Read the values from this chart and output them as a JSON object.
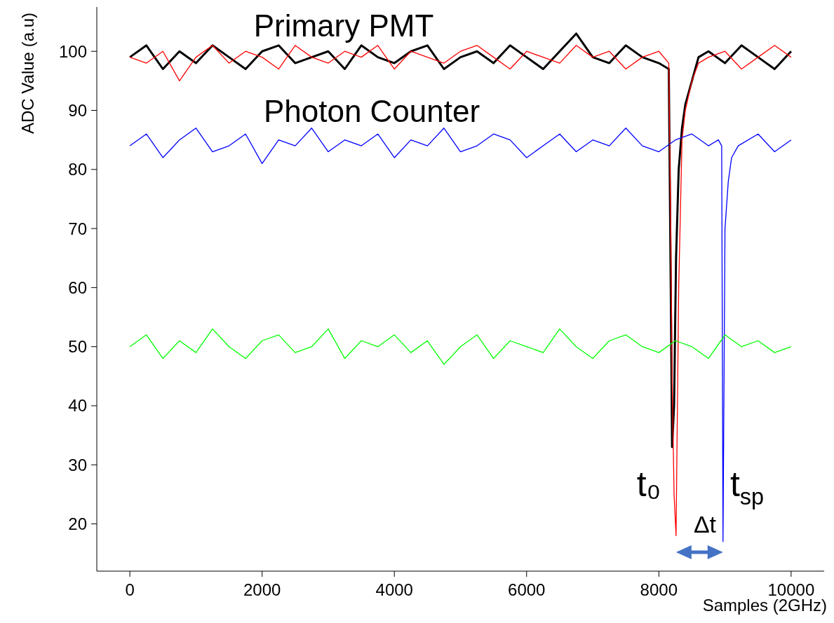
{
  "chart_data": {
    "type": "line",
    "xlabel": "Samples (2GHz)",
    "ylabel": "ADC Value (a.u)",
    "xlim": [
      -500,
      10500
    ],
    "xticks": [
      0,
      2000,
      4000,
      6000,
      8000,
      10000
    ],
    "ylim": [
      12,
      107.5
    ],
    "yticks": [
      20,
      30,
      40,
      50,
      60,
      70,
      80,
      90,
      100
    ],
    "grid": false,
    "marker": "none",
    "line_style": "solid",
    "series": [
      {
        "color": "#000000",
        "x": [
          0,
          250,
          500,
          750,
          1000,
          1250,
          1500,
          1750,
          2000,
          2250,
          2500,
          2750,
          3000,
          3250,
          3500,
          3750,
          4000,
          4250,
          4500,
          4750,
          5000,
          5250,
          5500,
          5750,
          6000,
          6250,
          6500,
          6750,
          7000,
          7250,
          7500,
          7750,
          8000,
          8150,
          8180,
          8200,
          8230,
          8260,
          8300,
          8350,
          8400,
          8500,
          8600,
          8750,
          9000,
          9250,
          9500,
          9750,
          10000
        ],
        "values": [
          99,
          101,
          97,
          100,
          98,
          101,
          99,
          97,
          100,
          101,
          98,
          99,
          100,
          97,
          101,
          99,
          98,
          100,
          101,
          97,
          99,
          100,
          98,
          101,
          99,
          97,
          100,
          103,
          99,
          98,
          101,
          99,
          98,
          97,
          60,
          33,
          40,
          65,
          80,
          87,
          91,
          95,
          99,
          100,
          98,
          101,
          99,
          97,
          100
        ]
      },
      {
        "color": "#ff0000",
        "x": [
          0,
          250,
          500,
          750,
          1000,
          1250,
          1500,
          1750,
          2000,
          2250,
          2500,
          2750,
          3000,
          3250,
          3500,
          3750,
          4000,
          4250,
          4500,
          4750,
          5000,
          5250,
          5500,
          5750,
          6000,
          6250,
          6500,
          6750,
          7000,
          7250,
          7500,
          7750,
          8000,
          8150,
          8180,
          8200,
          8230,
          8260,
          8300,
          8350,
          8400,
          8500,
          8600,
          8750,
          9000,
          9250,
          9500,
          9750,
          10000
        ],
        "values": [
          99,
          98,
          100,
          95,
          99,
          101,
          98,
          100,
          99,
          97,
          101,
          99,
          98,
          100,
          99,
          101,
          97,
          100,
          99,
          98,
          100,
          101,
          99,
          97,
          100,
          99,
          98,
          101,
          99,
          100,
          97,
          99,
          100,
          98,
          70,
          45,
          25,
          18,
          60,
          85,
          90,
          95,
          98,
          99,
          100,
          97,
          99,
          101,
          99
        ]
      },
      {
        "color": "#0000ff",
        "x": [
          0,
          250,
          500,
          750,
          1000,
          1250,
          1500,
          1750,
          2000,
          2250,
          2500,
          2750,
          3000,
          3250,
          3500,
          3750,
          4000,
          4250,
          4500,
          4750,
          5000,
          5250,
          5500,
          5750,
          6000,
          6250,
          6500,
          6750,
          7000,
          7250,
          7500,
          7750,
          8000,
          8250,
          8500,
          8750,
          8900,
          8950,
          8970,
          9000,
          9050,
          9100,
          9200,
          9500,
          9750,
          10000
        ],
        "values": [
          84,
          86,
          82,
          85,
          87,
          83,
          84,
          86,
          81,
          85,
          84,
          87,
          83,
          85,
          84,
          86,
          82,
          85,
          84,
          87,
          83,
          84,
          86,
          85,
          82,
          84,
          86,
          83,
          85,
          84,
          87,
          84,
          83,
          85,
          86,
          84,
          85,
          84,
          17,
          70,
          78,
          82,
          84,
          86,
          83,
          85
        ]
      },
      {
        "color": "#00ff00",
        "x": [
          0,
          250,
          500,
          750,
          1000,
          1250,
          1500,
          1750,
          2000,
          2250,
          2500,
          2750,
          3000,
          3250,
          3500,
          3750,
          4000,
          4250,
          4500,
          4750,
          5000,
          5250,
          5500,
          5750,
          6000,
          6250,
          6500,
          6750,
          7000,
          7250,
          7500,
          7750,
          8000,
          8250,
          8500,
          8750,
          9000,
          9250,
          9500,
          9750,
          10000
        ],
        "values": [
          50,
          52,
          48,
          51,
          49,
          53,
          50,
          48,
          51,
          52,
          49,
          50,
          53,
          48,
          51,
          50,
          52,
          49,
          51,
          47,
          50,
          52,
          48,
          51,
          50,
          49,
          53,
          50,
          48,
          51,
          52,
          50,
          49,
          51,
          50,
          48,
          52,
          50,
          51,
          49,
          50
        ]
      }
    ],
    "annotations": [
      "Primary PMT",
      "Photon Counter",
      "t₀",
      "t$_{sp}$",
      "Δt"
    ]
  }
}
